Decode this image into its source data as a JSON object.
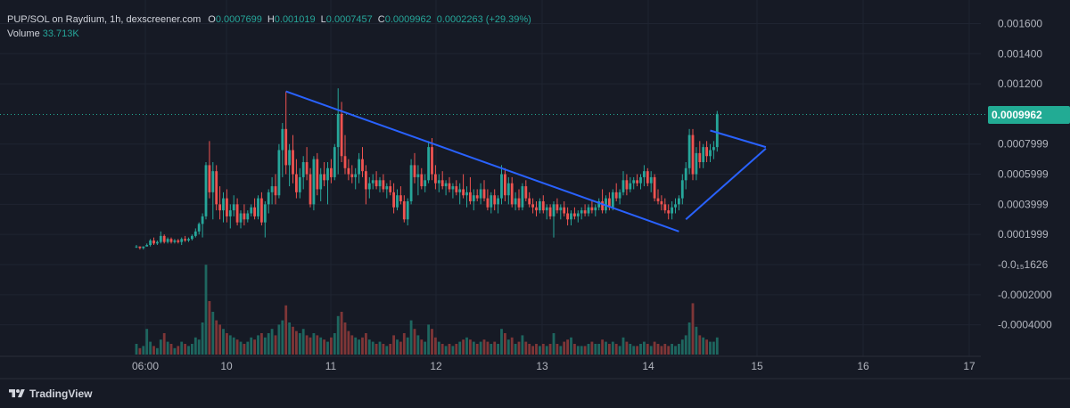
{
  "header": {
    "symbol": "PUP/SOL on Raydium, 1h, dexscreener.com",
    "open_label": "O",
    "open": "0.0007699",
    "high_label": "H",
    "high": "0.001019",
    "low_label": "L",
    "low": "0.0007457",
    "close_label": "C",
    "close": "0.0009962",
    "change": "0.0002263 (+29.39%)",
    "volume_label": "Volume",
    "volume": "33.713K"
  },
  "price_badge": "0.0009962",
  "brand": {
    "name": "TradingView",
    "logo_icon": "tradingview-logo-icon"
  },
  "colors": {
    "background": "#161a25",
    "up": "#26a69a",
    "down": "#ef5350",
    "trendline": "#2962ff",
    "grid": "#1f2431"
  },
  "chart_data": {
    "type": "candlestick",
    "y_axis_ticks": [
      "0.001600",
      "0.001400",
      "0.001200",
      "0.0009962",
      "0.0007999",
      "0.0005999",
      "0.0003999",
      "0.0001999",
      "-0.0₁₅1626",
      "-0.0002000",
      "-0.0004000"
    ],
    "ylim": [
      -0.00055,
      0.00165
    ],
    "x_axis_ticks": [
      "06:00",
      "10",
      "11",
      "12",
      "13",
      "14",
      "15",
      "16",
      "17"
    ],
    "last_price": 0.0009962,
    "candles_t0": 0,
    "candles_dt": 1,
    "candles": [
      [
        0.00012,
        0.00013,
        0.00011,
        0.00012,
        0.5
      ],
      [
        0.00012,
        0.00012,
        0.0001,
        0.00011,
        0.3
      ],
      [
        0.00011,
        0.00012,
        0.0001,
        0.00012,
        0.4
      ],
      [
        0.00012,
        0.00014,
        0.00012,
        0.00013,
        1.2
      ],
      [
        0.00013,
        0.00017,
        0.00012,
        0.00016,
        0.6
      ],
      [
        0.00016,
        0.00018,
        0.00013,
        0.00014,
        0.4
      ],
      [
        0.00014,
        0.00016,
        0.00013,
        0.00015,
        0.3
      ],
      [
        0.00015,
        0.00022,
        0.00014,
        0.00019,
        0.7
      ],
      [
        0.00019,
        0.0002,
        0.00014,
        0.00015,
        1.0
      ],
      [
        0.00015,
        0.00018,
        0.00014,
        0.00017,
        0.6
      ],
      [
        0.00017,
        0.00018,
        0.00014,
        0.00015,
        0.5
      ],
      [
        0.00015,
        0.00017,
        0.00014,
        0.00016,
        0.3
      ],
      [
        0.00016,
        0.00017,
        0.00014,
        0.00015,
        0.4
      ],
      [
        0.00015,
        0.00018,
        0.00013,
        0.00017,
        0.6
      ],
      [
        0.00017,
        0.00019,
        0.00015,
        0.00016,
        0.5
      ],
      [
        0.00016,
        0.00018,
        0.00015,
        0.00017,
        0.4
      ],
      [
        0.00017,
        0.0002,
        0.00016,
        0.00019,
        0.5
      ],
      [
        0.00019,
        0.00024,
        0.00018,
        0.00022,
        0.8
      ],
      [
        0.00022,
        0.00028,
        0.0002,
        0.00027,
        0.7
      ],
      [
        0.00027,
        0.00034,
        0.00018,
        0.00032,
        1.5
      ],
      [
        0.00032,
        0.00068,
        0.0003,
        0.00066,
        4.2
      ],
      [
        0.00066,
        0.00082,
        0.00044,
        0.00048,
        2.5
      ],
      [
        0.00048,
        0.00068,
        0.0003,
        0.00062,
        2.0
      ],
      [
        0.00062,
        0.00066,
        0.00036,
        0.0004,
        1.6
      ],
      [
        0.0004,
        0.00052,
        0.0003,
        0.00036,
        1.4
      ],
      [
        0.00036,
        0.00048,
        0.00028,
        0.00044,
        1.2
      ],
      [
        0.00044,
        0.0005,
        0.00028,
        0.00032,
        1.0
      ],
      [
        0.00032,
        0.0004,
        0.00024,
        0.00036,
        0.9
      ],
      [
        0.00036,
        0.00046,
        0.00032,
        0.0004,
        0.8
      ],
      [
        0.0004,
        0.00044,
        0.00026,
        0.00028,
        0.7
      ],
      [
        0.00028,
        0.00036,
        0.00024,
        0.00034,
        0.6
      ],
      [
        0.00034,
        0.0004,
        0.00026,
        0.0003,
        0.5
      ],
      [
        0.0003,
        0.00036,
        0.00028,
        0.00034,
        0.6
      ],
      [
        0.00034,
        0.0004,
        0.00032,
        0.00038,
        0.8
      ],
      [
        0.00038,
        0.00044,
        0.0003,
        0.00032,
        0.7
      ],
      [
        0.00032,
        0.00046,
        0.0003,
        0.00044,
        0.9
      ],
      [
        0.00044,
        0.00048,
        0.00026,
        0.00028,
        1.0
      ],
      [
        0.00028,
        0.00042,
        0.00018,
        0.0004,
        0.8
      ],
      [
        0.0004,
        0.0005,
        0.00034,
        0.00048,
        1.0
      ],
      [
        0.00048,
        0.00058,
        0.0004,
        0.00052,
        1.2
      ],
      [
        0.00052,
        0.0006,
        0.0004,
        0.00046,
        0.9
      ],
      [
        0.00046,
        0.0008,
        0.00044,
        0.00076,
        1.4
      ],
      [
        0.00076,
        0.00094,
        0.00058,
        0.0009,
        1.6
      ],
      [
        0.0009,
        0.00115,
        0.0006,
        0.00066,
        2.3
      ],
      [
        0.00066,
        0.0008,
        0.00052,
        0.00076,
        1.5
      ],
      [
        0.00076,
        0.00086,
        0.00054,
        0.0006,
        1.3
      ],
      [
        0.0006,
        0.0007,
        0.00044,
        0.00048,
        1.1
      ],
      [
        0.00048,
        0.00064,
        0.00044,
        0.00058,
        1.0
      ],
      [
        0.00058,
        0.00072,
        0.0005,
        0.00068,
        1.2
      ],
      [
        0.00068,
        0.00078,
        0.00056,
        0.0006,
        0.9
      ],
      [
        0.0006,
        0.00064,
        0.00038,
        0.0004,
        0.8
      ],
      [
        0.0004,
        0.00072,
        0.00036,
        0.0007,
        1.0
      ],
      [
        0.0007,
        0.00074,
        0.00046,
        0.0005,
        0.9
      ],
      [
        0.0005,
        0.00064,
        0.00042,
        0.0006,
        0.8
      ],
      [
        0.0006,
        0.00068,
        0.00052,
        0.00056,
        0.7
      ],
      [
        0.00056,
        0.00068,
        0.0004,
        0.00064,
        0.6
      ],
      [
        0.00064,
        0.0007,
        0.00054,
        0.00058,
        0.8
      ],
      [
        0.00058,
        0.0008,
        0.00056,
        0.00078,
        1.0
      ],
      [
        0.00078,
        0.00117,
        0.0006,
        0.001,
        1.8
      ],
      [
        0.001,
        0.00108,
        0.00068,
        0.00072,
        2.0
      ],
      [
        0.00072,
        0.00086,
        0.0006,
        0.00064,
        1.5
      ],
      [
        0.00064,
        0.0007,
        0.00056,
        0.0006,
        1.1
      ],
      [
        0.0006,
        0.00066,
        0.00054,
        0.00058,
        0.9
      ],
      [
        0.00058,
        0.00064,
        0.0005,
        0.0006,
        0.8
      ],
      [
        0.0006,
        0.00074,
        0.00054,
        0.0007,
        0.7
      ],
      [
        0.0007,
        0.00078,
        0.00058,
        0.00062,
        0.8
      ],
      [
        0.00062,
        0.00066,
        0.0004,
        0.0005,
        1.0
      ],
      [
        0.0005,
        0.00058,
        0.00044,
        0.00054,
        0.7
      ],
      [
        0.00054,
        0.0006,
        0.0005,
        0.00056,
        0.6
      ],
      [
        0.00056,
        0.00062,
        0.0005,
        0.00052,
        0.5
      ],
      [
        0.00052,
        0.00058,
        0.00048,
        0.00056,
        0.6
      ],
      [
        0.00056,
        0.0006,
        0.00048,
        0.0005,
        0.5
      ],
      [
        0.0005,
        0.00054,
        0.00044,
        0.00052,
        0.4
      ],
      [
        0.00052,
        0.00056,
        0.00046,
        0.00048,
        0.5
      ],
      [
        0.00048,
        0.00054,
        0.00034,
        0.00038,
        0.9
      ],
      [
        0.00038,
        0.0005,
        0.00036,
        0.00046,
        0.7
      ],
      [
        0.00046,
        0.00052,
        0.0004,
        0.00042,
        0.6
      ],
      [
        0.00042,
        0.00046,
        0.00028,
        0.0003,
        1.0
      ],
      [
        0.0003,
        0.00044,
        0.00026,
        0.00042,
        0.8
      ],
      [
        0.00042,
        0.0007,
        0.0004,
        0.00066,
        1.6
      ],
      [
        0.00066,
        0.00074,
        0.00054,
        0.00058,
        1.2
      ],
      [
        0.00058,
        0.00066,
        0.00046,
        0.0006,
        0.9
      ],
      [
        0.0006,
        0.00064,
        0.0005,
        0.00052,
        0.7
      ],
      [
        0.00052,
        0.0006,
        0.00048,
        0.00056,
        0.6
      ],
      [
        0.00056,
        0.00082,
        0.00054,
        0.00078,
        1.4
      ],
      [
        0.00078,
        0.00084,
        0.00056,
        0.0006,
        1.2
      ],
      [
        0.0006,
        0.00066,
        0.0005,
        0.00054,
        0.8
      ],
      [
        0.00054,
        0.0006,
        0.00048,
        0.00056,
        0.6
      ],
      [
        0.00056,
        0.00062,
        0.0005,
        0.00052,
        0.5
      ],
      [
        0.00052,
        0.00056,
        0.00046,
        0.00054,
        0.4
      ],
      [
        0.00054,
        0.00058,
        0.00048,
        0.0005,
        0.5
      ],
      [
        0.0005,
        0.00054,
        0.00044,
        0.00052,
        0.4
      ],
      [
        0.00052,
        0.00056,
        0.00046,
        0.00048,
        0.5
      ],
      [
        0.00048,
        0.00054,
        0.0004,
        0.0005,
        0.6
      ],
      [
        0.0005,
        0.0006,
        0.00044,
        0.00046,
        0.7
      ],
      [
        0.00046,
        0.00052,
        0.00038,
        0.00048,
        0.8
      ],
      [
        0.00048,
        0.00058,
        0.0004,
        0.00042,
        0.7
      ],
      [
        0.00042,
        0.0005,
        0.00036,
        0.00046,
        0.6
      ],
      [
        0.00046,
        0.0005,
        0.00042,
        0.00044,
        0.5
      ],
      [
        0.00044,
        0.00054,
        0.0004,
        0.0005,
        0.6
      ],
      [
        0.0005,
        0.00056,
        0.00042,
        0.00044,
        0.7
      ],
      [
        0.00044,
        0.0005,
        0.00036,
        0.00038,
        0.6
      ],
      [
        0.00038,
        0.00048,
        0.00034,
        0.00046,
        0.5
      ],
      [
        0.00046,
        0.0005,
        0.00036,
        0.0004,
        0.6
      ],
      [
        0.0004,
        0.00046,
        0.00034,
        0.00044,
        0.5
      ],
      [
        0.00044,
        0.00066,
        0.0004,
        0.0006,
        1.2
      ],
      [
        0.0006,
        0.00064,
        0.00042,
        0.00046,
        1.0
      ],
      [
        0.00046,
        0.00058,
        0.0004,
        0.00054,
        0.7
      ],
      [
        0.00054,
        0.00058,
        0.00038,
        0.0004,
        0.8
      ],
      [
        0.0004,
        0.00048,
        0.00036,
        0.00044,
        0.5
      ],
      [
        0.00044,
        0.0005,
        0.00036,
        0.00038,
        0.6
      ],
      [
        0.00038,
        0.00054,
        0.00036,
        0.00052,
        0.9
      ],
      [
        0.00052,
        0.00056,
        0.00042,
        0.00044,
        0.6
      ],
      [
        0.00044,
        0.00048,
        0.00038,
        0.0004,
        0.5
      ],
      [
        0.0004,
        0.00044,
        0.00034,
        0.00038,
        0.4
      ],
      [
        0.00038,
        0.00042,
        0.00032,
        0.00036,
        0.5
      ],
      [
        0.00036,
        0.00044,
        0.00034,
        0.00042,
        0.4
      ],
      [
        0.00042,
        0.00046,
        0.00034,
        0.00036,
        0.5
      ],
      [
        0.00036,
        0.0004,
        0.0003,
        0.00038,
        0.4
      ],
      [
        0.00038,
        0.0004,
        0.0003,
        0.00032,
        0.5
      ],
      [
        0.00032,
        0.00042,
        0.00018,
        0.0004,
        1.0
      ],
      [
        0.0004,
        0.00044,
        0.00034,
        0.00036,
        0.5
      ],
      [
        0.00036,
        0.0004,
        0.0003,
        0.00038,
        0.4
      ],
      [
        0.00038,
        0.00042,
        0.00032,
        0.00034,
        0.6
      ],
      [
        0.00034,
        0.00038,
        0.00026,
        0.0003,
        0.7
      ],
      [
        0.0003,
        0.00036,
        0.00026,
        0.00034,
        0.8
      ],
      [
        0.00034,
        0.00038,
        0.0003,
        0.00032,
        0.5
      ],
      [
        0.00032,
        0.00036,
        0.00028,
        0.00034,
        0.4
      ],
      [
        0.00034,
        0.00038,
        0.0003,
        0.00036,
        0.4
      ],
      [
        0.00036,
        0.0004,
        0.00032,
        0.00034,
        0.4
      ],
      [
        0.00034,
        0.0004,
        0.00032,
        0.00038,
        0.5
      ],
      [
        0.00038,
        0.00042,
        0.00034,
        0.00036,
        0.6
      ],
      [
        0.00036,
        0.0004,
        0.00032,
        0.00038,
        0.5
      ],
      [
        0.00038,
        0.00044,
        0.00036,
        0.00042,
        0.5
      ],
      [
        0.00042,
        0.0005,
        0.00034,
        0.00036,
        0.7
      ],
      [
        0.00036,
        0.00046,
        0.00034,
        0.00044,
        0.6
      ],
      [
        0.00044,
        0.00048,
        0.00036,
        0.00038,
        0.5
      ],
      [
        0.00038,
        0.0005,
        0.00036,
        0.00048,
        0.6
      ],
      [
        0.00048,
        0.00054,
        0.00042,
        0.00044,
        0.5
      ],
      [
        0.00044,
        0.0005,
        0.0004,
        0.00048,
        0.4
      ],
      [
        0.00048,
        0.00062,
        0.00046,
        0.00056,
        0.8
      ],
      [
        0.00056,
        0.0006,
        0.00046,
        0.0005,
        0.6
      ],
      [
        0.0005,
        0.00058,
        0.00048,
        0.00054,
        0.5
      ],
      [
        0.00054,
        0.00058,
        0.0005,
        0.00056,
        0.4
      ],
      [
        0.00056,
        0.0006,
        0.00052,
        0.00054,
        0.4
      ],
      [
        0.00054,
        0.0006,
        0.0005,
        0.00058,
        0.5
      ],
      [
        0.00058,
        0.00066,
        0.00052,
        0.00062,
        0.6
      ],
      [
        0.00062,
        0.00064,
        0.00052,
        0.00054,
        0.5
      ],
      [
        0.00054,
        0.00062,
        0.00048,
        0.00058,
        0.4
      ],
      [
        0.00058,
        0.0006,
        0.00042,
        0.00044,
        0.6
      ],
      [
        0.00044,
        0.0005,
        0.0004,
        0.00042,
        0.5
      ],
      [
        0.00042,
        0.00046,
        0.00036,
        0.0004,
        0.4
      ],
      [
        0.0004,
        0.00044,
        0.00034,
        0.00036,
        0.5
      ],
      [
        0.00036,
        0.0004,
        0.0003,
        0.00034,
        0.4
      ],
      [
        0.00034,
        0.00042,
        0.0003,
        0.00038,
        0.5
      ],
      [
        0.00038,
        0.00044,
        0.00034,
        0.0004,
        0.4
      ],
      [
        0.0004,
        0.00046,
        0.00036,
        0.00044,
        0.5
      ],
      [
        0.00044,
        0.0006,
        0.0004,
        0.00056,
        0.7
      ],
      [
        0.00056,
        0.00068,
        0.0005,
        0.00064,
        0.9
      ],
      [
        0.00064,
        0.0009,
        0.0006,
        0.00086,
        1.5
      ],
      [
        0.00086,
        0.0009,
        0.00056,
        0.0006,
        2.4
      ],
      [
        0.0006,
        0.00078,
        0.00056,
        0.00074,
        1.3
      ],
      [
        0.00074,
        0.00082,
        0.00064,
        0.00068,
        0.9
      ],
      [
        0.00068,
        0.0008,
        0.00064,
        0.00078,
        0.8
      ],
      [
        0.00078,
        0.00082,
        0.00068,
        0.00072,
        0.7
      ],
      [
        0.00072,
        0.0008,
        0.00068,
        0.00076,
        0.6
      ],
      [
        0.00076,
        0.00082,
        0.0007,
        0.00078,
        0.6
      ],
      [
        0.00078,
        0.00102,
        0.00075,
        0.001,
        0.8
      ]
    ],
    "trendlines": [
      {
        "name": "descending-resistance",
        "x1": 43,
        "y1": 0.00115,
        "x2": 156,
        "y2": 0.00022
      },
      {
        "name": "wedge-upper",
        "x1": 165,
        "y1": 0.00089,
        "x2": 181,
        "y2": 0.00078
      },
      {
        "name": "wedge-lower",
        "x1": 158,
        "y1": 0.0003,
        "x2": 181,
        "y2": 0.00077
      }
    ]
  }
}
